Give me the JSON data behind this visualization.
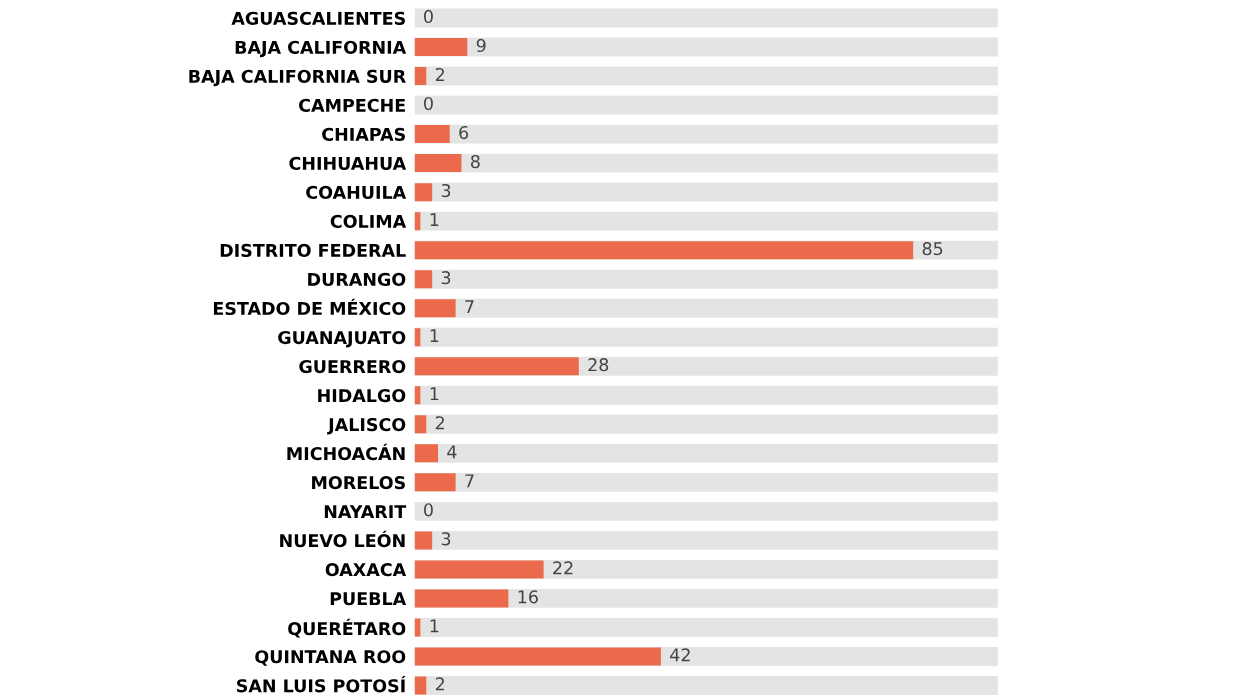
{
  "chart_data": {
    "type": "bar",
    "orientation": "horizontal",
    "categories": [
      "AGUASCALIENTES",
      "BAJA CALIFORNIA",
      "BAJA CALIFORNIA SUR",
      "CAMPECHE",
      "CHIAPAS",
      "CHIHUAHUA",
      "COAHUILA",
      "COLIMA",
      "DISTRITO FEDERAL",
      "DURANGO",
      "ESTADO DE MÉXICO",
      "GUANAJUATO",
      "GUERRERO",
      "HIDALGO",
      "JALISCO",
      "MICHOACÁN",
      "MORELOS",
      "NAYARIT",
      "NUEVO LEÓN",
      "OAXACA",
      "PUEBLA",
      "QUERÉTARO",
      "QUINTANA ROO",
      "SAN LUIS POTOSÍ"
    ],
    "values": [
      0,
      9,
      2,
      0,
      6,
      8,
      3,
      1,
      85,
      3,
      7,
      1,
      28,
      1,
      2,
      4,
      7,
      0,
      3,
      22,
      16,
      1,
      42,
      2
    ],
    "color": "#ec6a4c",
    "data_labels": true,
    "grid": "y",
    "tick_labels": "y",
    "legend": false
  }
}
